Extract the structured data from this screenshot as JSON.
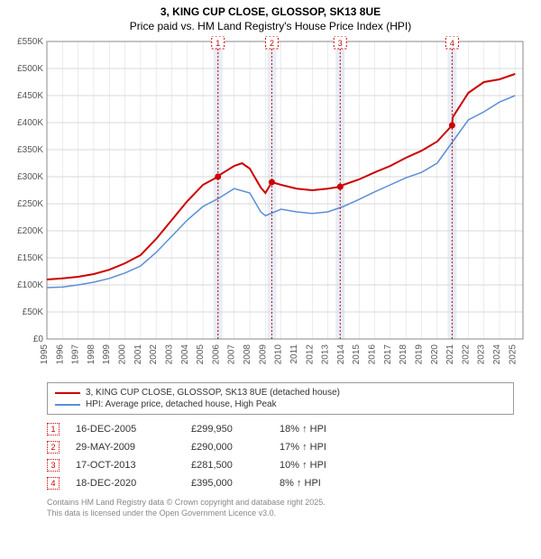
{
  "title": {
    "line1": "3, KING CUP CLOSE, GLOSSOP, SK13 8UE",
    "line2": "Price paid vs. HM Land Registry's House Price Index (HPI)"
  },
  "colors": {
    "series_property": "#cc0000",
    "series_hpi": "#5b8fd6",
    "axis": "#888888",
    "grid": "#d8d8d8",
    "tick_text": "#555555",
    "marker_band": "#e8eef9",
    "marker_border": "#cc0000",
    "background": "#ffffff"
  },
  "chart": {
    "type": "line",
    "x_years": [
      1995,
      1996,
      1997,
      1998,
      1999,
      2000,
      2001,
      2002,
      2003,
      2004,
      2005,
      2006,
      2007,
      2008,
      2009,
      2010,
      2011,
      2012,
      2013,
      2014,
      2015,
      2016,
      2017,
      2018,
      2019,
      2020,
      2021,
      2022,
      2023,
      2024,
      2025
    ],
    "y_ticks": [
      0,
      50000,
      100000,
      150000,
      200000,
      250000,
      300000,
      350000,
      400000,
      450000,
      500000,
      550000
    ],
    "y_tick_labels": [
      "£0",
      "£50K",
      "£100K",
      "£150K",
      "£200K",
      "£250K",
      "£300K",
      "£350K",
      "£400K",
      "£450K",
      "£500K",
      "£550K"
    ],
    "ylim": [
      0,
      550000
    ],
    "xlim": [
      1995,
      2025.5
    ],
    "line_width_property": 2,
    "line_width_hpi": 1.5,
    "label_fontsize": 10,
    "series_property": [
      [
        1995,
        110000
      ],
      [
        1996,
        112000
      ],
      [
        1997,
        115000
      ],
      [
        1998,
        120000
      ],
      [
        1999,
        128000
      ],
      [
        2000,
        140000
      ],
      [
        2001,
        155000
      ],
      [
        2002,
        185000
      ],
      [
        2003,
        220000
      ],
      [
        2004,
        255000
      ],
      [
        2005,
        285000
      ],
      [
        2005.96,
        299950
      ],
      [
        2006,
        302000
      ],
      [
        2007,
        320000
      ],
      [
        2007.5,
        325000
      ],
      [
        2008,
        315000
      ],
      [
        2008.7,
        280000
      ],
      [
        2009,
        270000
      ],
      [
        2009.41,
        290000
      ],
      [
        2010,
        285000
      ],
      [
        2011,
        278000
      ],
      [
        2012,
        275000
      ],
      [
        2013,
        278000
      ],
      [
        2013.79,
        281500
      ],
      [
        2014,
        285000
      ],
      [
        2015,
        295000
      ],
      [
        2016,
        308000
      ],
      [
        2017,
        320000
      ],
      [
        2018,
        335000
      ],
      [
        2019,
        348000
      ],
      [
        2020,
        365000
      ],
      [
        2020.96,
        395000
      ],
      [
        2021,
        410000
      ],
      [
        2022,
        455000
      ],
      [
        2023,
        475000
      ],
      [
        2024,
        480000
      ],
      [
        2025,
        490000
      ]
    ],
    "series_hpi": [
      [
        1995,
        95000
      ],
      [
        1996,
        96000
      ],
      [
        1997,
        100000
      ],
      [
        1998,
        105000
      ],
      [
        1999,
        112000
      ],
      [
        2000,
        122000
      ],
      [
        2001,
        135000
      ],
      [
        2002,
        160000
      ],
      [
        2003,
        190000
      ],
      [
        2004,
        220000
      ],
      [
        2005,
        245000
      ],
      [
        2006,
        260000
      ],
      [
        2007,
        278000
      ],
      [
        2008,
        270000
      ],
      [
        2008.7,
        235000
      ],
      [
        2009,
        228000
      ],
      [
        2010,
        240000
      ],
      [
        2011,
        235000
      ],
      [
        2012,
        232000
      ],
      [
        2013,
        235000
      ],
      [
        2014,
        245000
      ],
      [
        2015,
        258000
      ],
      [
        2016,
        272000
      ],
      [
        2017,
        285000
      ],
      [
        2018,
        298000
      ],
      [
        2019,
        308000
      ],
      [
        2020,
        325000
      ],
      [
        2021,
        365000
      ],
      [
        2022,
        405000
      ],
      [
        2023,
        420000
      ],
      [
        2024,
        438000
      ],
      [
        2025,
        450000
      ]
    ],
    "sale_markers": [
      {
        "n": 1,
        "x": 2005.96,
        "y": 299950
      },
      {
        "n": 2,
        "x": 2009.41,
        "y": 290000
      },
      {
        "n": 3,
        "x": 2013.79,
        "y": 281500
      },
      {
        "n": 4,
        "x": 2020.96,
        "y": 395000
      }
    ]
  },
  "legend": {
    "items": [
      {
        "color": "#cc0000",
        "label": "3, KING CUP CLOSE, GLOSSOP, SK13 8UE (detached house)"
      },
      {
        "color": "#5b8fd6",
        "label": "HPI: Average price, detached house, High Peak"
      }
    ]
  },
  "sales": [
    {
      "n": 1,
      "date": "16-DEC-2005",
      "price": "£299,950",
      "diff": "18% ↑ HPI"
    },
    {
      "n": 2,
      "date": "29-MAY-2009",
      "price": "£290,000",
      "diff": "17% ↑ HPI"
    },
    {
      "n": 3,
      "date": "17-OCT-2013",
      "price": "£281,500",
      "diff": "10% ↑ HPI"
    },
    {
      "n": 4,
      "date": "18-DEC-2020",
      "price": "£395,000",
      "diff": "8% ↑ HPI"
    }
  ],
  "footer": {
    "line1": "Contains HM Land Registry data © Crown copyright and database right 2025.",
    "line2": "This data is licensed under the Open Government Licence v3.0."
  }
}
